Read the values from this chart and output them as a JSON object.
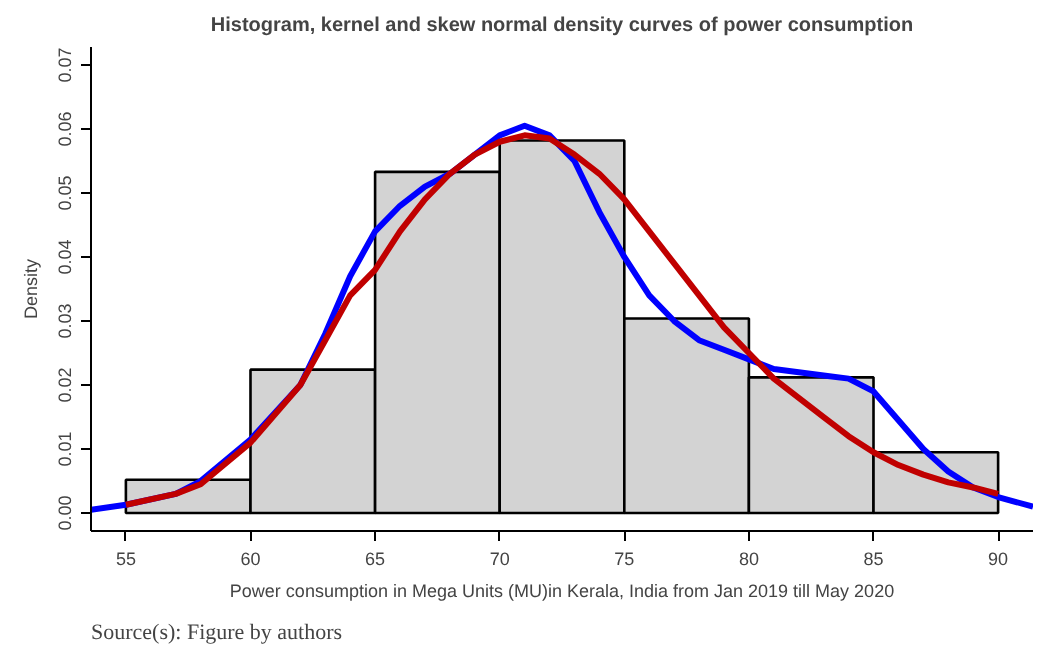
{
  "chart_data": {
    "type": "histogram",
    "title": "Histogram, kernel and skew normal density curves of power consumption",
    "xlabel": "Power consumption in Mega Units (MU)in Kerala, India from Jan 2019 till May 2020",
    "ylabel": "Density",
    "bins": [
      55,
      60,
      65,
      70,
      75,
      80,
      85,
      90
    ],
    "values": [
      0.0052,
      0.0224,
      0.0533,
      0.0582,
      0.0304,
      0.0212,
      0.0095
    ],
    "color": "#d3d3d3",
    "series": [
      {
        "type": "line",
        "color": "#0000ff",
        "x": [
          53.6,
          55,
          57,
          58,
          60,
          62,
          63,
          64,
          65,
          66,
          67,
          68,
          69,
          70,
          71,
          72,
          73,
          74,
          75,
          76,
          77,
          78,
          79,
          80,
          81,
          82,
          83,
          84,
          85,
          86,
          87,
          88,
          89,
          90,
          91.4
        ],
        "values": [
          0.0005,
          0.0013,
          0.003,
          0.005,
          0.0115,
          0.02,
          0.028,
          0.037,
          0.044,
          0.048,
          0.051,
          0.053,
          0.056,
          0.059,
          0.0605,
          0.059,
          0.055,
          0.047,
          0.04,
          0.034,
          0.03,
          0.027,
          0.0255,
          0.024,
          0.0225,
          0.022,
          0.0215,
          0.021,
          0.019,
          0.0145,
          0.01,
          0.0065,
          0.004,
          0.0025,
          0.001
        ]
      },
      {
        "type": "line",
        "color": "#c00000",
        "x": [
          55,
          57,
          58,
          60,
          62,
          63,
          64,
          65,
          66,
          67,
          68,
          69,
          70,
          71,
          72,
          73,
          74,
          75,
          76,
          77,
          78,
          79,
          80,
          81,
          82,
          83,
          84,
          85,
          86,
          87,
          88,
          89,
          90
        ],
        "values": [
          0.0013,
          0.003,
          0.0045,
          0.011,
          0.02,
          0.027,
          0.034,
          0.038,
          0.044,
          0.049,
          0.053,
          0.056,
          0.058,
          0.059,
          0.0585,
          0.056,
          0.053,
          0.049,
          0.044,
          0.039,
          0.034,
          0.029,
          0.025,
          0.021,
          0.018,
          0.015,
          0.012,
          0.0095,
          0.0075,
          0.006,
          0.0048,
          0.004,
          0.003
        ]
      }
    ],
    "xlim": [
      53.6,
      91.4
    ],
    "ylim": [
      -0.0028,
      0.0728
    ],
    "xticks": [
      55,
      60,
      65,
      70,
      75,
      80,
      85,
      90
    ],
    "yticks": [
      {
        "value": 0,
        "label": "0.00"
      },
      {
        "value": 0.01,
        "label": "0.01"
      },
      {
        "value": 0.02,
        "label": "0.02"
      },
      {
        "value": 0.03,
        "label": "0.03"
      },
      {
        "value": 0.04,
        "label": "0.04"
      },
      {
        "value": 0.05,
        "label": "0.05"
      },
      {
        "value": 0.06,
        "label": "0.06"
      },
      {
        "value": 0.07,
        "label": "0.07"
      }
    ],
    "grid": false,
    "annotations": [
      "Source(s): Figure by authors"
    ]
  }
}
